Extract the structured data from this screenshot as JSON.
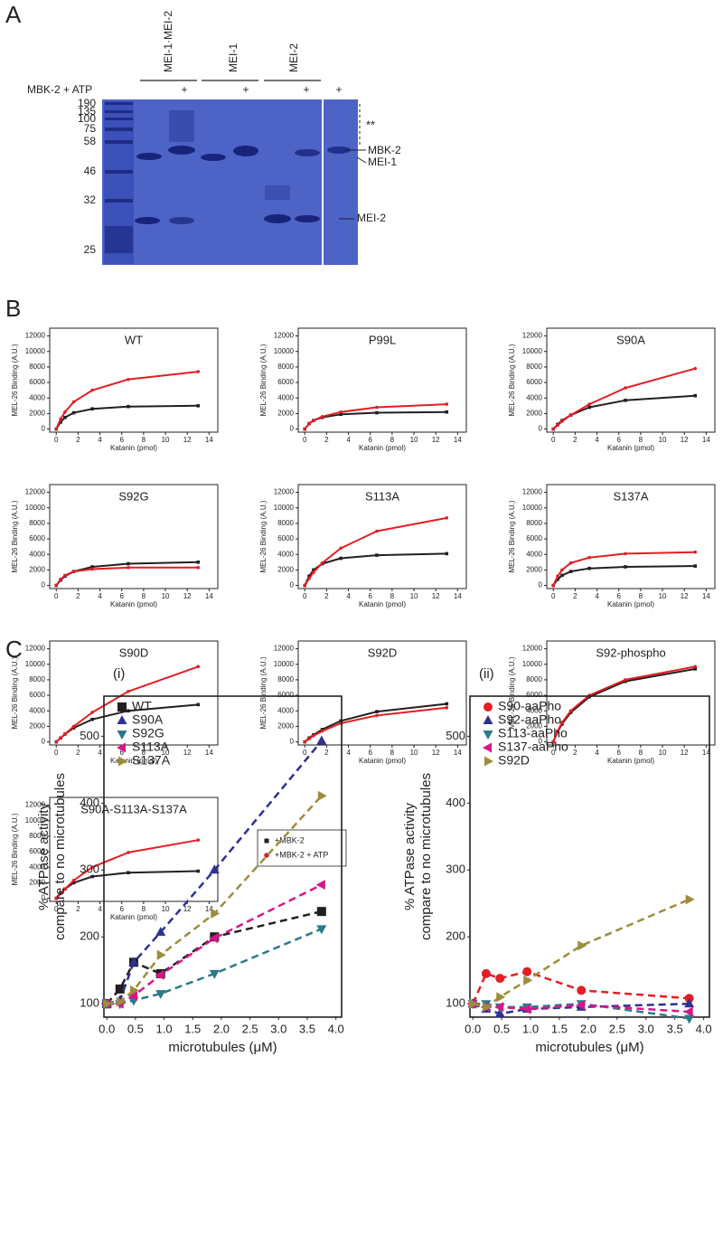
{
  "panel_labels": [
    "A",
    "B",
    "C"
  ],
  "gel": {
    "header_label": "MBK-2 + ATP",
    "lanes": [
      "MEI-1·MEI-2",
      "MEI-1",
      "MEI-2"
    ],
    "plus_marks": [
      "+",
      "+",
      "+",
      "+"
    ],
    "mw_markers": [
      190,
      135,
      100,
      75,
      58,
      46,
      32,
      25
    ],
    "asterisks": "**",
    "band_labels": [
      "MBK-2",
      "MEI-1",
      "MEI-2"
    ]
  },
  "legend_b": [
    {
      "name": "+MBK-2",
      "color": "#231f20",
      "marker": "square"
    },
    {
      "name": "+MBK-2 + ATP",
      "color": "#e31e24",
      "marker": "circle"
    }
  ],
  "chart_data": [
    {
      "type": "line",
      "title": "WT",
      "x_label": "Katanin (pmol)",
      "y_label": "MEL-26 Binding (A.U.)",
      "line_style": "solid",
      "x": [
        0,
        0.4,
        0.8,
        1.6,
        3.3,
        6.6,
        13
      ],
      "series": [
        {
          "values": [
            0,
            900,
            1500,
            2100,
            2600,
            2900,
            3000
          ]
        },
        {
          "values": [
            0,
            1300,
            2200,
            3500,
            5000,
            6400,
            7400
          ]
        }
      ],
      "xlim": [
        -0.6,
        14.8
      ],
      "ylim": [
        -400,
        13000
      ],
      "xticks": [
        0,
        2,
        4,
        6,
        8,
        10,
        12,
        14
      ],
      "yticks": [
        0,
        2000,
        4000,
        6000,
        8000,
        10000,
        12000
      ]
    },
    {
      "type": "line",
      "title": "P99L",
      "x_label": "Katanin (pmol)",
      "y_label": "MEL-26 Binding (A.U.)",
      "line_style": "solid",
      "x": [
        0,
        0.4,
        0.8,
        1.6,
        3.3,
        6.6,
        13
      ],
      "series": [
        {
          "values": [
            0,
            700,
            1100,
            1500,
            1900,
            2100,
            2200
          ]
        },
        {
          "values": [
            0,
            700,
            1100,
            1600,
            2200,
            2800,
            3200
          ]
        }
      ],
      "xlim": [
        -0.6,
        14.8
      ],
      "ylim": [
        -400,
        13000
      ],
      "xticks": [
        0,
        2,
        4,
        6,
        8,
        10,
        12,
        14
      ],
      "yticks": [
        0,
        2000,
        4000,
        6000,
        8000,
        10000,
        12000
      ]
    },
    {
      "type": "line",
      "title": "S90A",
      "x_label": "Katanin (pmol)",
      "y_label": "MEL-26 Binding (A.U.)",
      "line_style": "solid",
      "x": [
        0,
        0.4,
        0.8,
        1.6,
        3.3,
        6.6,
        13
      ],
      "series": [
        {
          "values": [
            0,
            600,
            1100,
            1800,
            2800,
            3700,
            4300
          ]
        },
        {
          "values": [
            0,
            500,
            1000,
            1800,
            3200,
            5300,
            7800
          ]
        }
      ],
      "xlim": [
        -0.6,
        14.8
      ],
      "ylim": [
        -400,
        13000
      ],
      "xticks": [
        0,
        2,
        4,
        6,
        8,
        10,
        12,
        14
      ],
      "yticks": [
        0,
        2000,
        4000,
        6000,
        8000,
        10000,
        12000
      ]
    },
    {
      "type": "line",
      "title": "S92G",
      "x_label": "Katanin (pmol)",
      "y_label": "MEL-26 Binding (A.U.)",
      "line_style": "solid",
      "x": [
        0,
        0.4,
        0.8,
        1.6,
        3.3,
        6.6,
        13
      ],
      "series": [
        {
          "values": [
            0,
            700,
            1200,
            1800,
            2400,
            2800,
            3000
          ]
        },
        {
          "values": [
            0,
            800,
            1300,
            1800,
            2100,
            2300,
            2300
          ]
        }
      ],
      "xlim": [
        -0.6,
        14.8
      ],
      "ylim": [
        -400,
        13000
      ],
      "xticks": [
        0,
        2,
        4,
        6,
        8,
        10,
        12,
        14
      ],
      "yticks": [
        0,
        2000,
        4000,
        6000,
        8000,
        10000,
        12000
      ]
    },
    {
      "type": "line",
      "title": "S113A",
      "x_label": "Katanin (pmol)",
      "y_label": "MEL-26 Binding (A.U.)",
      "line_style": "solid",
      "x": [
        0,
        0.4,
        0.8,
        1.6,
        3.3,
        6.6,
        13
      ],
      "series": [
        {
          "values": [
            0,
            1200,
            2000,
            2800,
            3500,
            3900,
            4100
          ]
        },
        {
          "values": [
            0,
            900,
            1700,
            2900,
            4800,
            7000,
            8700
          ]
        }
      ],
      "xlim": [
        -0.6,
        14.8
      ],
      "ylim": [
        -400,
        13000
      ],
      "xticks": [
        0,
        2,
        4,
        6,
        8,
        10,
        12,
        14
      ],
      "yticks": [
        0,
        2000,
        4000,
        6000,
        8000,
        10000,
        12000
      ]
    },
    {
      "type": "line",
      "title": "S137A",
      "x_label": "Katanin (pmol)",
      "y_label": "MEL-26 Binding (A.U.)",
      "line_style": "solid",
      "x": [
        0,
        0.4,
        0.8,
        1.6,
        3.3,
        6.6,
        13
      ],
      "series": [
        {
          "values": [
            0,
            800,
            1300,
            1800,
            2200,
            2400,
            2500
          ]
        },
        {
          "values": [
            0,
            1200,
            2000,
            2900,
            3600,
            4100,
            4300
          ]
        }
      ],
      "xlim": [
        -0.6,
        14.8
      ],
      "ylim": [
        -400,
        13000
      ],
      "xticks": [
        0,
        2,
        4,
        6,
        8,
        10,
        12,
        14
      ],
      "yticks": [
        0,
        2000,
        4000,
        6000,
        8000,
        10000,
        12000
      ]
    },
    {
      "type": "line",
      "title": "S90D",
      "x_label": "Katanin (pmol)",
      "y_label": "MEL-26 Binding (A.U.)",
      "line_style": "solid",
      "x": [
        0,
        0.4,
        0.8,
        1.6,
        3.3,
        6.6,
        13
      ],
      "series": [
        {
          "values": [
            0,
            500,
            1000,
            1800,
            2900,
            4000,
            4800
          ]
        },
        {
          "values": [
            0,
            500,
            1000,
            2000,
            3800,
            6500,
            9700
          ]
        }
      ],
      "xlim": [
        -0.6,
        14.8
      ],
      "ylim": [
        -400,
        13000
      ],
      "xticks": [
        0,
        2,
        4,
        6,
        8,
        10,
        12,
        14
      ],
      "yticks": [
        0,
        2000,
        4000,
        6000,
        8000,
        10000,
        12000
      ]
    },
    {
      "type": "line",
      "title": "S92D",
      "x_label": "Katanin (pmol)",
      "y_label": "MEL-26 Binding (A.U.)",
      "line_style": "solid",
      "x": [
        0,
        0.4,
        0.8,
        1.6,
        3.3,
        6.6,
        13
      ],
      "series": [
        {
          "values": [
            0,
            500,
            900,
            1600,
            2700,
            3900,
            4900
          ]
        },
        {
          "values": [
            0,
            400,
            800,
            1400,
            2400,
            3400,
            4400
          ]
        }
      ],
      "xlim": [
        -0.6,
        14.8
      ],
      "ylim": [
        -400,
        13000
      ],
      "xticks": [
        0,
        2,
        4,
        6,
        8,
        10,
        12,
        14
      ],
      "yticks": [
        0,
        2000,
        4000,
        6000,
        8000,
        10000,
        12000
      ]
    },
    {
      "type": "line",
      "title": "S92-phospho",
      "x_label": "Katanin (pmol)",
      "y_label": "MEL-26 Binding (A.U.)",
      "line_style": "solid",
      "x": [
        0,
        0.4,
        0.8,
        1.6,
        3.3,
        6.6,
        13
      ],
      "series": [
        {
          "values": [
            0,
            1300,
            2300,
            3800,
            5800,
            7800,
            9400
          ]
        },
        {
          "values": [
            0,
            1400,
            2500,
            4000,
            6000,
            8000,
            9700
          ]
        }
      ],
      "xlim": [
        -0.6,
        14.8
      ],
      "ylim": [
        -400,
        13000
      ],
      "xticks": [
        0,
        2,
        4,
        6,
        8,
        10,
        12,
        14
      ],
      "yticks": [
        0,
        2000,
        4000,
        6000,
        8000,
        10000,
        12000
      ]
    },
    {
      "type": "line",
      "title": "S90A-S113A-S137A",
      "x_label": "Katanin (pmol)",
      "y_label": "MEL-26 Binding (A.U.)",
      "line_style": "solid",
      "x": [
        0,
        0.4,
        0.8,
        1.6,
        3.3,
        6.6,
        13
      ],
      "series": [
        {
          "values": [
            0,
            700,
            1200,
            2000,
            2800,
            3300,
            3500
          ]
        },
        {
          "values": [
            0,
            600,
            1200,
            2300,
            4000,
            5900,
            7500
          ]
        }
      ],
      "xlim": [
        -0.6,
        14.8
      ],
      "ylim": [
        -400,
        13000
      ],
      "xticks": [
        0,
        2,
        4,
        6,
        8,
        10,
        12,
        14
      ],
      "yticks": [
        0,
        2000,
        4000,
        6000,
        8000,
        10000,
        12000
      ]
    },
    {
      "type": "line",
      "subtitle": "(i)",
      "x_label": "microtubules (μM)",
      "y_label": [
        "% ATPase activity",
        "compare to no microtubules"
      ],
      "line_style": "dashed",
      "x": [
        0,
        0.23,
        0.47,
        0.94,
        1.88,
        3.75
      ],
      "series": [
        {
          "name": "WT",
          "color": "#231f20",
          "marker": "square",
          "values": [
            100,
            122,
            162,
            145,
            200,
            238
          ]
        },
        {
          "name": "S90A",
          "color": "#2e3192",
          "marker": "triangle-up",
          "values": [
            100,
            105,
            162,
            207,
            300,
            493
          ]
        },
        {
          "name": "S92G",
          "color": "#2b7a8c",
          "marker": "triangle-down",
          "values": [
            100,
            100,
            105,
            115,
            145,
            212
          ]
        },
        {
          "name": "S113A",
          "color": "#d6168a",
          "marker": "triangle-left",
          "values": [
            100,
            100,
            112,
            143,
            198,
            278
          ]
        },
        {
          "name": "S137A",
          "color": "#9c8d3c",
          "marker": "triangle-right",
          "values": [
            100,
            103,
            120,
            173,
            235,
            411
          ]
        }
      ],
      "xlim": [
        -0.05,
        4.1
      ],
      "ylim": [
        80,
        560
      ],
      "xticks": [
        {
          "value": 0,
          "label": "0.0"
        },
        0.5,
        {
          "value": 1,
          "label": "1.0"
        },
        1.5,
        {
          "value": 2,
          "label": "2.0"
        },
        2.5,
        {
          "value": 3,
          "label": "3.0"
        },
        3.5,
        {
          "value": 4,
          "label": "4.0"
        }
      ],
      "yticks": [
        100,
        200,
        300,
        400,
        500
      ]
    },
    {
      "type": "line",
      "subtitle": "(ii)",
      "x_label": "microtubules (μM)",
      "y_label": [
        "% ATPase activity",
        "compare to no microtubules"
      ],
      "line_style": "dashed",
      "x": [
        0,
        0.23,
        0.47,
        0.94,
        1.88,
        3.75
      ],
      "series": [
        {
          "name": "S90-aaPho",
          "color": "#e31e24",
          "marker": "circle",
          "values": [
            100,
            145,
            138,
            148,
            120,
            108
          ]
        },
        {
          "name": "S92-aaPho",
          "color": "#2e3192",
          "marker": "triangle-up",
          "values": [
            100,
            92,
            85,
            92,
            95,
            100
          ]
        },
        {
          "name": "S113-aaPho",
          "color": "#2b7a8c",
          "marker": "triangle-down",
          "values": [
            100,
            100,
            95,
            95,
            100,
            78
          ]
        },
        {
          "name": "S137-aaPho",
          "color": "#d6168a",
          "marker": "triangle-left",
          "values": [
            100,
            95,
            95,
            92,
            98,
            88
          ]
        },
        {
          "name": "S92D",
          "color": "#9c8d3c",
          "marker": "triangle-right",
          "values": [
            100,
            95,
            110,
            135,
            187,
            256
          ]
        }
      ],
      "xlim": [
        -0.05,
        4.1
      ],
      "ylim": [
        80,
        560
      ],
      "xticks": [
        {
          "value": 0,
          "label": "0.0"
        },
        0.5,
        {
          "value": 1,
          "label": "1.0"
        },
        1.5,
        {
          "value": 2,
          "label": "2.0"
        },
        2.5,
        {
          "value": 3,
          "label": "3.0"
        },
        3.5,
        {
          "value": 4,
          "label": "4.0"
        }
      ],
      "yticks": [
        100,
        200,
        300,
        400,
        500
      ]
    }
  ]
}
